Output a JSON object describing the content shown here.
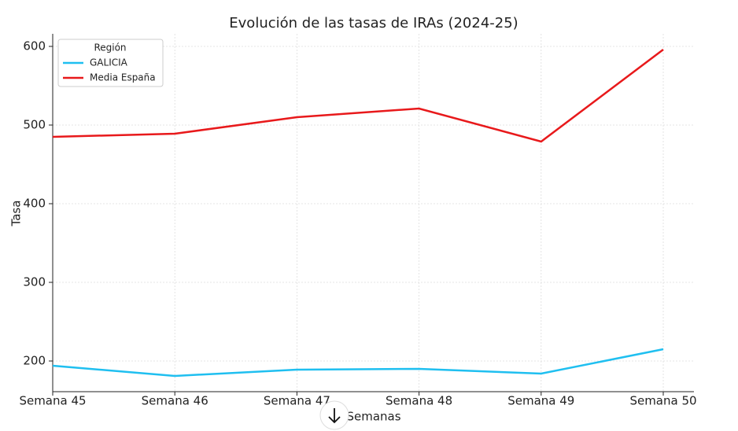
{
  "chart_data": {
    "type": "line",
    "title": "Evolución de las tasas de IRAs (2024-25)",
    "x_label": "Semanas",
    "y_label": "Tasa",
    "categories": [
      "Semana 45",
      "Semana 46",
      "Semana 47",
      "Semana 48",
      "Semana 49",
      "Semana 50"
    ],
    "series": [
      {
        "name": "GALICIA",
        "color": "#1fbff0",
        "values": [
          194,
          181,
          189,
          190,
          184,
          215
        ]
      },
      {
        "name": "Media España",
        "color": "#e8191b",
        "values": [
          485,
          489,
          510,
          521,
          479,
          596
        ]
      }
    ],
    "ylim": [
      161,
      616
    ],
    "yticks": [
      200,
      300,
      400,
      500,
      600
    ],
    "grid": true,
    "legend_title": "Región",
    "legend_position": "upper left"
  }
}
